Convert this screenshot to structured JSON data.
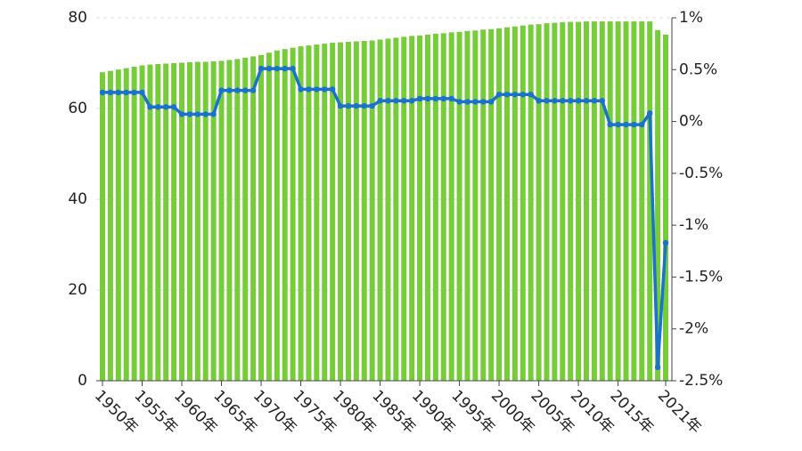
{
  "chart_data": {
    "type": "combo",
    "categories": [
      "1950年",
      null,
      null,
      null,
      null,
      "1955年",
      null,
      null,
      null,
      null,
      "1960年",
      null,
      null,
      null,
      null,
      "1965年",
      null,
      null,
      null,
      null,
      "1970年",
      null,
      null,
      null,
      null,
      "1975年",
      null,
      null,
      null,
      null,
      "1980年",
      null,
      null,
      null,
      null,
      "1985年",
      null,
      null,
      null,
      null,
      "1990年",
      null,
      null,
      null,
      null,
      "1995年",
      null,
      null,
      null,
      null,
      "2000年",
      null,
      null,
      null,
      null,
      "2005年",
      null,
      null,
      null,
      null,
      "2010年",
      null,
      null,
      null,
      null,
      "2015年",
      null,
      null,
      null,
      null,
      null,
      "2021年"
    ],
    "series": [
      {
        "type": "bar",
        "color": "#77cc3a",
        "values": [
          68.0,
          68.3,
          68.6,
          68.9,
          69.2,
          69.5,
          69.7,
          69.8,
          69.9,
          70.0,
          70.1,
          70.2,
          70.3,
          70.3,
          70.4,
          70.5,
          70.7,
          70.9,
          71.2,
          71.5,
          71.8,
          72.3,
          72.8,
          73.1,
          73.4,
          73.7,
          73.9,
          74.1,
          74.3,
          74.5,
          74.6,
          74.7,
          74.8,
          74.9,
          75.0,
          75.2,
          75.4,
          75.6,
          75.8,
          76.0,
          76.1,
          76.3,
          76.5,
          76.6,
          76.8,
          76.9,
          77.1,
          77.2,
          77.4,
          77.5,
          77.7,
          77.9,
          78.1,
          78.3,
          78.5,
          78.6,
          78.8,
          78.9,
          79.0,
          79.1,
          79.1,
          79.2,
          79.2,
          79.2,
          79.2,
          79.2,
          79.2,
          79.2,
          79.2,
          79.2,
          77.3,
          76.3
        ]
      },
      {
        "type": "line",
        "axis": "y2",
        "color": "#1a72cc",
        "values": [
          0.28,
          0.28,
          0.28,
          0.28,
          0.28,
          0.28,
          0.14,
          0.14,
          0.14,
          0.14,
          0.07,
          0.07,
          0.07,
          0.07,
          0.07,
          0.3,
          0.3,
          0.3,
          0.3,
          0.3,
          0.51,
          0.51,
          0.51,
          0.51,
          0.51,
          0.31,
          0.31,
          0.31,
          0.31,
          0.31,
          0.15,
          0.15,
          0.15,
          0.15,
          0.15,
          0.2,
          0.2,
          0.2,
          0.2,
          0.2,
          0.22,
          0.22,
          0.22,
          0.22,
          0.22,
          0.19,
          0.19,
          0.19,
          0.19,
          0.19,
          0.26,
          0.26,
          0.26,
          0.26,
          0.26,
          0.2,
          0.2,
          0.2,
          0.2,
          0.2,
          0.2,
          0.2,
          0.2,
          0.2,
          -0.03,
          -0.03,
          -0.03,
          -0.03,
          -0.03,
          0.08,
          -2.37,
          -1.17
        ]
      }
    ],
    "ylim": [
      0,
      80
    ],
    "yticks": [
      0,
      20,
      40,
      60,
      80
    ],
    "y2lim": [
      -2.5,
      1
    ],
    "y2ticks": [
      {
        "value": 1,
        "label": "1%"
      },
      {
        "value": 0.5,
        "label": "0.5%"
      },
      {
        "value": 0,
        "label": "0%"
      },
      {
        "value": -0.5,
        "label": "-0.5%"
      },
      {
        "value": -1,
        "label": "-1%"
      },
      {
        "value": -1.5,
        "label": "-1.5%"
      },
      {
        "value": -2,
        "label": "-2%"
      },
      {
        "value": -2.5,
        "label": "-2.5%"
      }
    ],
    "grid": true
  }
}
